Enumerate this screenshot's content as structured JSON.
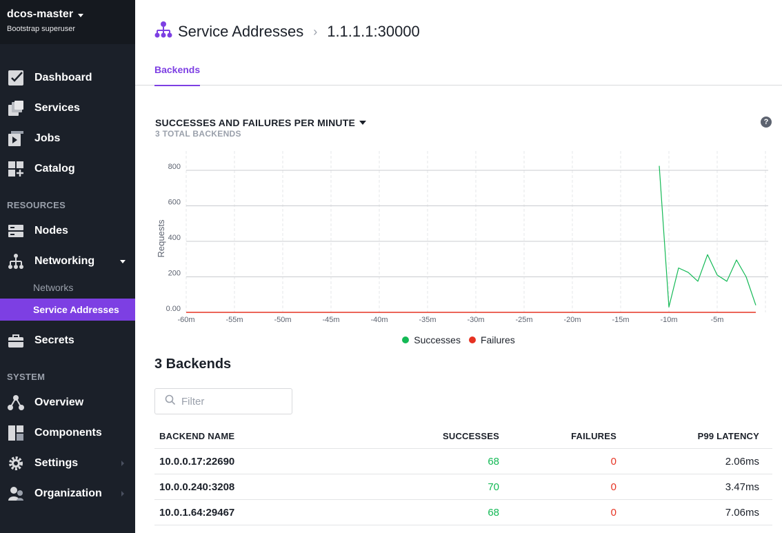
{
  "sidebar": {
    "cluster_name": "dcos-master",
    "user_name": "Bootstrap superuser",
    "items": {
      "dashboard": "Dashboard",
      "services": "Services",
      "jobs": "Jobs",
      "catalog": "Catalog",
      "nodes": "Nodes",
      "networking": "Networking",
      "networks": "Networks",
      "service_addresses": "Service Addresses",
      "secrets": "Secrets",
      "overview": "Overview",
      "components": "Components",
      "settings": "Settings",
      "organization": "Organization"
    },
    "sections": {
      "resources": "RESOURCES",
      "system": "SYSTEM"
    },
    "active_item": "Service Addresses",
    "accent_color": "#7d3fe3"
  },
  "header": {
    "breadcrumb_parent": "Service Addresses",
    "breadcrumb_separator": "›",
    "breadcrumb_current": "1.1.1.1:30000",
    "icon": "service-addresses-icon"
  },
  "tabs": {
    "backends": "Backends"
  },
  "chart": {
    "title": "SUCCESSES AND FAILURES PER MINUTE",
    "subtitle": "3 TOTAL BACKENDS",
    "help": "?"
  },
  "chart_data": {
    "type": "line",
    "title": "SUCCESSES AND FAILURES PER MINUTE",
    "xlabel": "",
    "ylabel": "Requests",
    "xlim": [
      -60,
      0
    ],
    "ylim": [
      0,
      800
    ],
    "x_ticks": [
      -60,
      -55,
      -50,
      -45,
      -40,
      -35,
      -30,
      -25,
      -20,
      -15,
      -10,
      -5
    ],
    "x_tick_labels": [
      "-60m",
      "-55m",
      "-50m",
      "-45m",
      "-40m",
      "-35m",
      "-30m",
      "-25m",
      "-20m",
      "-15m",
      "-10m",
      "-5m"
    ],
    "y_ticks": [
      0,
      200,
      400,
      600,
      800
    ],
    "y_tick_labels": [
      "0.00",
      "200",
      "400",
      "600",
      "800"
    ],
    "grid": true,
    "legend_position": "bottom",
    "series": [
      {
        "name": "Successes",
        "color": "#13b955",
        "x": [
          -11,
          -10,
          -9,
          -8,
          -7,
          -6,
          -5,
          -4,
          -3,
          -2,
          -1
        ],
        "values": [
          825,
          30,
          250,
          225,
          175,
          325,
          210,
          175,
          295,
          200,
          40
        ]
      },
      {
        "name": "Failures",
        "color": "#e63222",
        "x": [
          -60,
          -50,
          -40,
          -30,
          -20,
          -10,
          -1
        ],
        "values": [
          0,
          0,
          0,
          0,
          0,
          0,
          0
        ]
      }
    ]
  },
  "backends": {
    "heading": "3 Backends",
    "filter_placeholder": "Filter",
    "columns": [
      "BACKEND NAME",
      "SUCCESSES",
      "FAILURES",
      "P99 LATENCY"
    ],
    "rows": [
      {
        "name": "10.0.0.17:22690",
        "successes": "68",
        "failures": "0",
        "latency": "2.06ms"
      },
      {
        "name": "10.0.0.240:3208",
        "successes": "70",
        "failures": "0",
        "latency": "3.47ms"
      },
      {
        "name": "10.0.1.64:29467",
        "successes": "68",
        "failures": "0",
        "latency": "7.06ms"
      }
    ]
  }
}
